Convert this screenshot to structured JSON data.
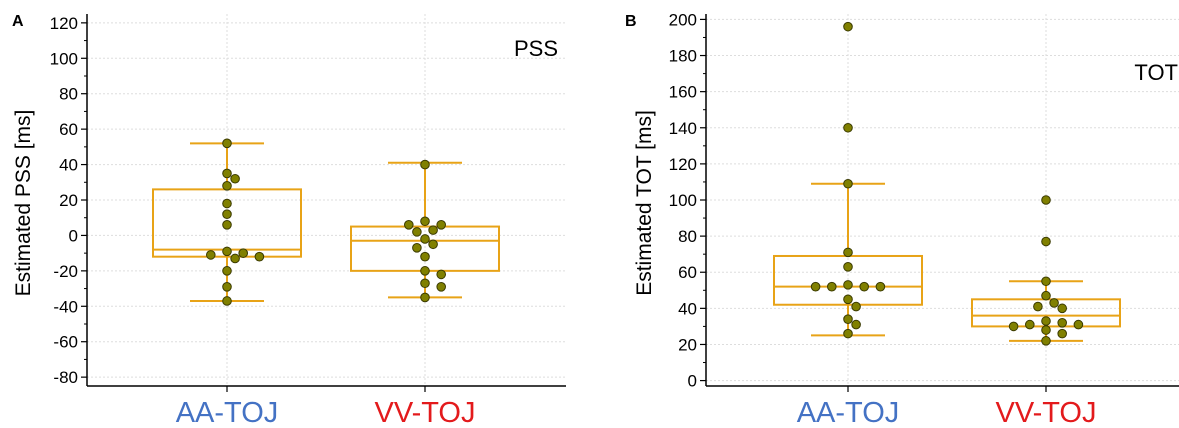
{
  "chart_data": [
    {
      "type": "box",
      "panel_label": "A",
      "corner_label": "PSS",
      "xlabel": "",
      "ylabel": "Estimated PSS [ms]",
      "ylim": [
        -85,
        125
      ],
      "yticks": [
        -80,
        -60,
        -40,
        -20,
        0,
        20,
        40,
        60,
        80,
        100,
        120
      ],
      "grid": true,
      "categories": [
        {
          "label": "AA-TOJ",
          "color": "#4472C4"
        },
        {
          "label": "VV-TOJ",
          "color": "#E31A1C"
        }
      ],
      "boxes": [
        {
          "whisker_low": -37,
          "q1": -12,
          "median": -8,
          "q3": 26,
          "whisker_high": 52
        },
        {
          "whisker_low": -35,
          "q1": -20,
          "median": -3,
          "q3": 5,
          "whisker_high": 41
        }
      ],
      "points": [
        [
          52,
          35,
          32,
          28,
          18,
          12,
          6,
          -9,
          -10,
          -11,
          -12,
          -13,
          -20,
          -29,
          -37
        ],
        [
          40,
          8,
          6,
          6,
          3,
          2,
          -2,
          -5,
          -7,
          -12,
          -20,
          -22,
          -27,
          -29,
          -35
        ]
      ]
    },
    {
      "type": "box",
      "panel_label": "B",
      "corner_label": "TOT",
      "xlabel": "",
      "ylabel": "Estimated TOT [ms]",
      "ylim": [
        -3,
        203
      ],
      "yticks": [
        0,
        20,
        40,
        60,
        80,
        100,
        120,
        140,
        160,
        180,
        200
      ],
      "grid": true,
      "categories": [
        {
          "label": "AA-TOJ",
          "color": "#4472C4"
        },
        {
          "label": "VV-TOJ",
          "color": "#E31A1C"
        }
      ],
      "boxes": [
        {
          "whisker_low": 25,
          "q1": 42,
          "median": 52,
          "q3": 69,
          "whisker_high": 109
        },
        {
          "whisker_low": 22,
          "q1": 30,
          "median": 36,
          "q3": 45,
          "whisker_high": 55
        }
      ],
      "points": [
        [
          196,
          140,
          109,
          71,
          63,
          53,
          52,
          52,
          52,
          52,
          45,
          41,
          34,
          31,
          26
        ],
        [
          100,
          77,
          55,
          47,
          43,
          41,
          40,
          33,
          32,
          31,
          31,
          30,
          28,
          26,
          22
        ]
      ]
    }
  ],
  "colors": {
    "box": "#E8A317",
    "point_fill": "#808000",
    "point_stroke": "#3A3A00",
    "grid": "#DDDDDD",
    "axis": "#000000"
  }
}
